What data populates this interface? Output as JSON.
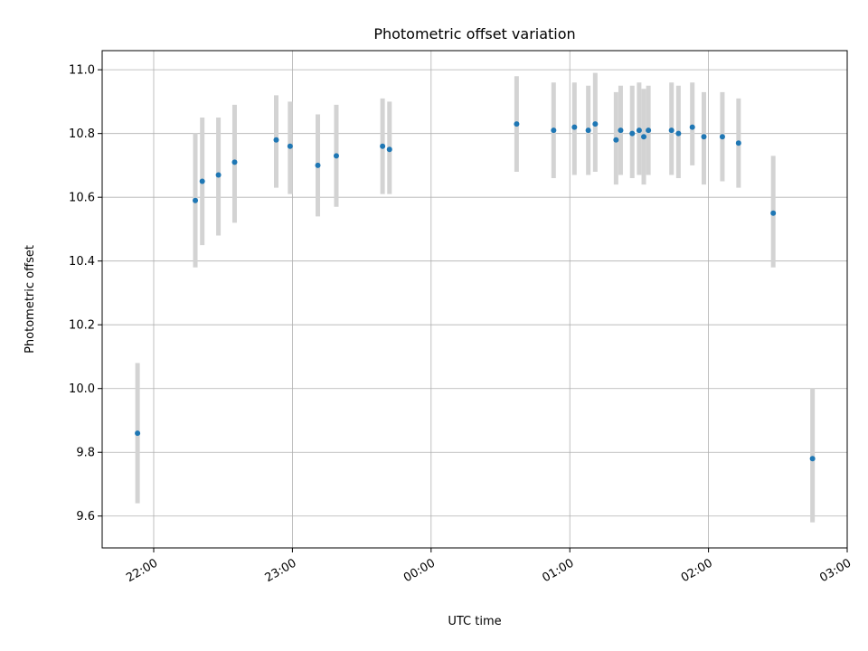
{
  "chart_data": {
    "type": "scatter",
    "title": "Photometric offset variation",
    "xlabel": "UTC time",
    "ylabel": "Photometric offset",
    "x_axis": {
      "kind": "time",
      "range": [
        "21:48",
        "03:00"
      ],
      "ticks": [
        "22:00",
        "23:00",
        "00:00",
        "01:00",
        "02:00",
        "03:00"
      ],
      "tick_minutes": [
        0,
        60,
        120,
        180,
        240,
        300
      ]
    },
    "y_axis": {
      "range": [
        9.5,
        11.06
      ],
      "ticks": [
        "9.6",
        "9.8",
        "10.0",
        "10.2",
        "10.4",
        "10.6",
        "10.8",
        "11.0"
      ]
    },
    "grid": true,
    "colors": {
      "point": "#1f77b4",
      "errorbar": "#d3d3d3",
      "grid": "#b0b0b0"
    },
    "points": [
      {
        "t": "21:53",
        "y": 9.86,
        "lo": 9.64,
        "hi": 10.08
      },
      {
        "t": "22:18",
        "y": 10.59,
        "lo": 10.38,
        "hi": 10.8
      },
      {
        "t": "22:21",
        "y": 10.65,
        "lo": 10.45,
        "hi": 10.85
      },
      {
        "t": "22:28",
        "y": 10.67,
        "lo": 10.48,
        "hi": 10.85
      },
      {
        "t": "22:35",
        "y": 10.71,
        "lo": 10.52,
        "hi": 10.89
      },
      {
        "t": "22:53",
        "y": 10.78,
        "lo": 10.63,
        "hi": 10.92
      },
      {
        "t": "22:59",
        "y": 10.76,
        "lo": 10.61,
        "hi": 10.9
      },
      {
        "t": "23:11",
        "y": 10.7,
        "lo": 10.54,
        "hi": 10.86
      },
      {
        "t": "23:19",
        "y": 10.73,
        "lo": 10.57,
        "hi": 10.89
      },
      {
        "t": "23:39",
        "y": 10.76,
        "lo": 10.61,
        "hi": 10.91
      },
      {
        "t": "23:42",
        "y": 10.75,
        "lo": 10.61,
        "hi": 10.9
      },
      {
        "t": "00:37",
        "y": 10.83,
        "lo": 10.68,
        "hi": 10.98
      },
      {
        "t": "00:53",
        "y": 10.81,
        "lo": 10.66,
        "hi": 10.96
      },
      {
        "t": "01:02",
        "y": 10.82,
        "lo": 10.67,
        "hi": 10.96
      },
      {
        "t": "01:08",
        "y": 10.81,
        "lo": 10.67,
        "hi": 10.95
      },
      {
        "t": "01:11",
        "y": 10.83,
        "lo": 10.68,
        "hi": 10.99
      },
      {
        "t": "01:20",
        "y": 10.78,
        "lo": 10.64,
        "hi": 10.93
      },
      {
        "t": "01:22",
        "y": 10.81,
        "lo": 10.67,
        "hi": 10.95
      },
      {
        "t": "01:27",
        "y": 10.8,
        "lo": 10.66,
        "hi": 10.95
      },
      {
        "t": "01:30",
        "y": 10.81,
        "lo": 10.67,
        "hi": 10.96
      },
      {
        "t": "01:32",
        "y": 10.79,
        "lo": 10.64,
        "hi": 10.94
      },
      {
        "t": "01:34",
        "y": 10.81,
        "lo": 10.67,
        "hi": 10.95
      },
      {
        "t": "01:44",
        "y": 10.81,
        "lo": 10.67,
        "hi": 10.96
      },
      {
        "t": "01:47",
        "y": 10.8,
        "lo": 10.66,
        "hi": 10.95
      },
      {
        "t": "01:53",
        "y": 10.82,
        "lo": 10.7,
        "hi": 10.96
      },
      {
        "t": "01:58",
        "y": 10.79,
        "lo": 10.64,
        "hi": 10.93
      },
      {
        "t": "02:06",
        "y": 10.79,
        "lo": 10.65,
        "hi": 10.93
      },
      {
        "t": "02:13",
        "y": 10.77,
        "lo": 10.63,
        "hi": 10.91
      },
      {
        "t": "02:28",
        "y": 10.55,
        "lo": 10.38,
        "hi": 10.73
      },
      {
        "t": "02:45",
        "y": 9.78,
        "lo": 9.58,
        "hi": 10.0
      }
    ]
  }
}
